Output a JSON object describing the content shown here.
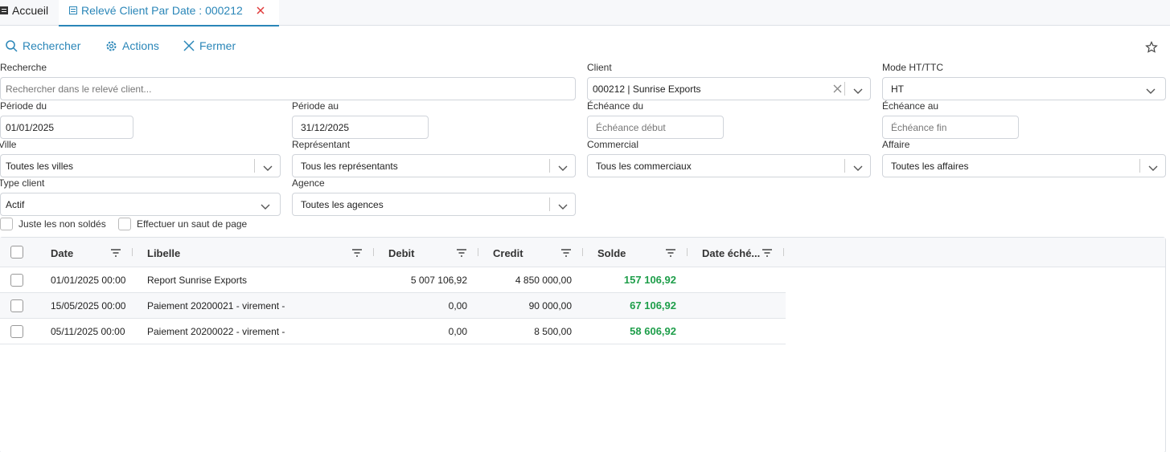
{
  "tabs": [
    {
      "label": "Accueil"
    },
    {
      "label": "Relevé Client Par Date : 000212"
    }
  ],
  "toolbar": [
    "Rechercher",
    "Actions",
    "Fermer"
  ],
  "fields": [
    {
      "label": "Recherche",
      "placeholder": "Rechercher dans le relevé client..."
    },
    {
      "label": "Client",
      "value": "000212 | Sunrise Exports"
    },
    {
      "label": "Mode HT/TTC",
      "value": "HT"
    },
    {
      "label": "Période du",
      "value": "01/01/2025"
    },
    {
      "label": "Période au",
      "value": "31/12/2025"
    },
    {
      "label": "Échéance du",
      "placeholder": "Échéance début"
    },
    {
      "label": "Échéance au",
      "placeholder": "Échéance fin"
    },
    {
      "label": "Ville",
      "value": "Toutes les villes"
    },
    {
      "label": "Représentant",
      "value": "Tous les représentants"
    },
    {
      "label": "Commercial",
      "value": "Tous les commerciaux"
    },
    {
      "label": "Affaire",
      "value": "Toutes les affaires"
    },
    {
      "label": "Type client",
      "value": "Actif"
    },
    {
      "label": "Agence",
      "value": "Toutes les agences"
    }
  ],
  "checkboxes": [
    "Juste les non soldés",
    "Effectuer un saut de page"
  ],
  "table": {
    "columns": [
      "Date",
      "Libelle",
      "Debit",
      "Credit",
      "Solde",
      "Date éché..."
    ],
    "rows": [
      [
        "01/01/2025 00:00",
        "Report Sunrise Exports",
        "5 007 106,92",
        "4 850 000,00",
        "157 106,92"
      ],
      [
        "15/05/2025 00:00",
        "Paiement 20200021 - virement -",
        "0,00",
        "90 000,00",
        "67 106,92"
      ],
      [
        "05/11/2025 00:00",
        "Paiement 20200022 - virement -",
        "0,00",
        "8 500,00",
        "58 606,92"
      ]
    ]
  }
}
